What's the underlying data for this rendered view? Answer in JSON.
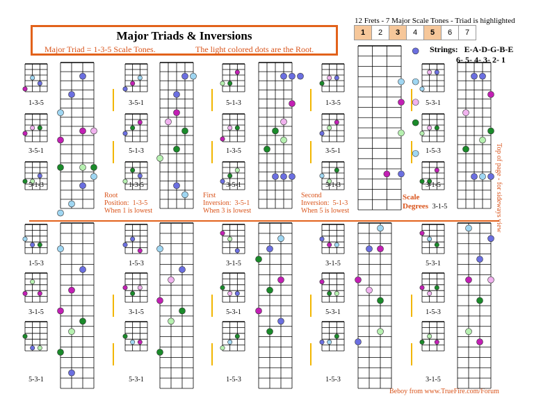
{
  "title": "Major Triads & Inversions",
  "subtitle_left": "Major Triad = 1-3-5 Scale Tones.",
  "subtitle_right": "The light colored dots are the Root.",
  "scale_header": "12 Frets - 7 Major Scale Tones - Triad is highlighted",
  "scale_cells": [
    "1",
    "2",
    "3",
    "4",
    "5",
    "6",
    "7"
  ],
  "strings_label": "Strings:",
  "strings_names": "E-A-D-G-B-E",
  "strings_numbers": "6- 5- 4- 3- 2- 1",
  "notes": {
    "root_pos": [
      "Root",
      "Position:",
      "1-3-5",
      "When 1 is lowest"
    ],
    "first_inv": [
      "First",
      "Inversion:",
      "3-5-1",
      "When 3 is lowest"
    ],
    "second_inv": [
      "Second",
      "Inversion:",
      "5-1-3",
      "When 5 is lowest"
    ],
    "scale_degrees": [
      "Scale",
      "Degrees",
      "3-1-5"
    ]
  },
  "side_text": "Top of page - for sideways view",
  "credit": "Beboy from www.TrueFire.com/Forum",
  "small_labels": {
    "top": [
      [
        "1-3-5",
        "3-5-1",
        "5-1-3"
      ],
      [
        "3-5-1",
        "5-1-3",
        "1-3-5"
      ],
      [
        "5-1-3",
        "1-3-5",
        "3-5-1"
      ],
      [
        "1-3-5",
        "3-5-1",
        "5-1-3"
      ],
      [
        "5-3-1",
        "1-5-3",
        "3-1-5"
      ]
    ],
    "bottom": [
      [
        "1-5-3",
        "3-1-5",
        "5-3-1"
      ],
      [
        "1-5-3",
        "3-1-5",
        "5-3-1"
      ],
      [
        "3-1-5",
        "5-3-1",
        "1-5-3"
      ],
      [
        "3-1-5",
        "5-3-1",
        "1-5-3"
      ],
      [
        "5-3-1",
        "1-5-3",
        "3-1-5"
      ]
    ]
  },
  "colors": {
    "orange": "#d9531a",
    "blue": "#6b6fe0",
    "lightblue": "#9fd6f2",
    "magenta": "#c21fb4",
    "pink": "#f0b2ee",
    "green": "#1a8a2a",
    "lightgreen": "#b6f0b0"
  },
  "dot_legend": {
    "blue": "1-blue",
    "magenta": "3-magenta",
    "green": "5-green",
    "light": "root"
  }
}
